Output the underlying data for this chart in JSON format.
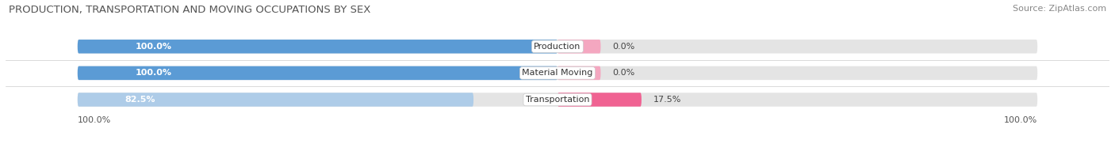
{
  "title": "PRODUCTION, TRANSPORTATION AND MOVING OCCUPATIONS BY SEX",
  "source": "Source: ZipAtlas.com",
  "categories": [
    "Production",
    "Material Moving",
    "Transportation"
  ],
  "male_values": [
    100.0,
    100.0,
    82.5
  ],
  "female_values": [
    0.0,
    0.0,
    17.5
  ],
  "male_color_strong": "#5b9bd5",
  "male_color_light": "#aecce8",
  "female_color_strong": "#f06292",
  "female_color_light": "#f4a7c0",
  "bar_bg_color": "#e4e4e4",
  "title_fontsize": 9.5,
  "source_fontsize": 8,
  "bar_label_fontsize": 8,
  "category_fontsize": 8,
  "axis_label_fontsize": 8
}
